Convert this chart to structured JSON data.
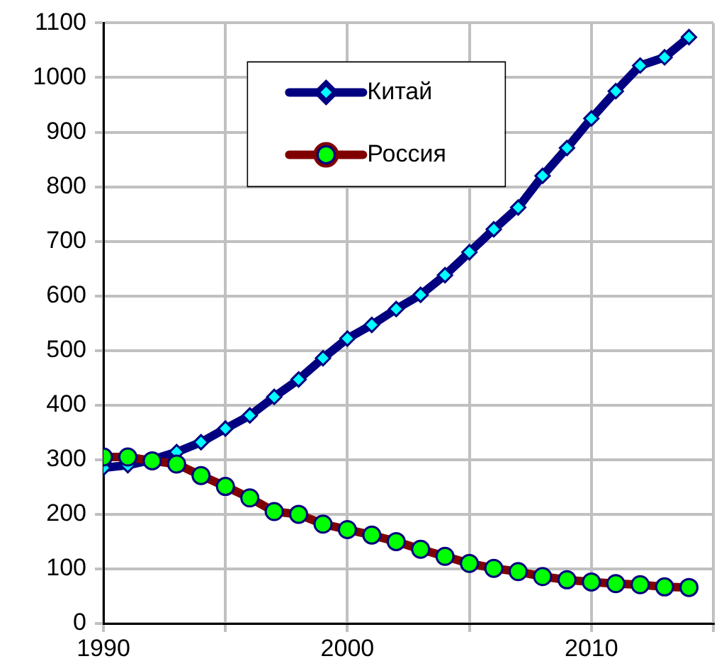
{
  "chart_data": {
    "type": "line",
    "x": [
      1990,
      1991,
      1992,
      1993,
      1994,
      1995,
      1996,
      1997,
      1998,
      1999,
      2000,
      2001,
      2002,
      2003,
      2004,
      2005,
      2006,
      2007,
      2008,
      2009,
      2010,
      2011,
      2012,
      2013,
      2014
    ],
    "series": [
      {
        "name": "Китай",
        "color": "#000080",
        "marker": "diamond",
        "values": [
          285,
          290,
          300,
          314,
          332,
          357,
          381,
          415,
          447,
          486,
          522,
          547,
          576,
          602,
          638,
          680,
          722,
          762,
          820,
          871,
          925,
          975,
          1022,
          1037,
          1074
        ]
      },
      {
        "name": "Россия",
        "color": "#800000",
        "marker": "circle",
        "values": [
          305,
          305,
          298,
          292,
          271,
          251,
          230,
          205,
          200,
          182,
          172,
          162,
          150,
          136,
          123,
          110,
          101,
          95,
          86,
          80,
          76,
          73,
          71,
          67,
          66
        ]
      }
    ],
    "xlim": [
      1990,
      2015
    ],
    "xticks": [
      1990,
      {
        "value": 1995,
        "label": null
      },
      2000,
      {
        "value": 2005,
        "label": null
      },
      2010,
      {
        "value": 2015,
        "label": null
      }
    ],
    "ylim": [
      0,
      1100
    ],
    "yticks": [
      0,
      100,
      200,
      300,
      400,
      500,
      600,
      700,
      800,
      900,
      1000,
      1100
    ],
    "grid": true,
    "legend": "top",
    "line_style": "solid"
  }
}
